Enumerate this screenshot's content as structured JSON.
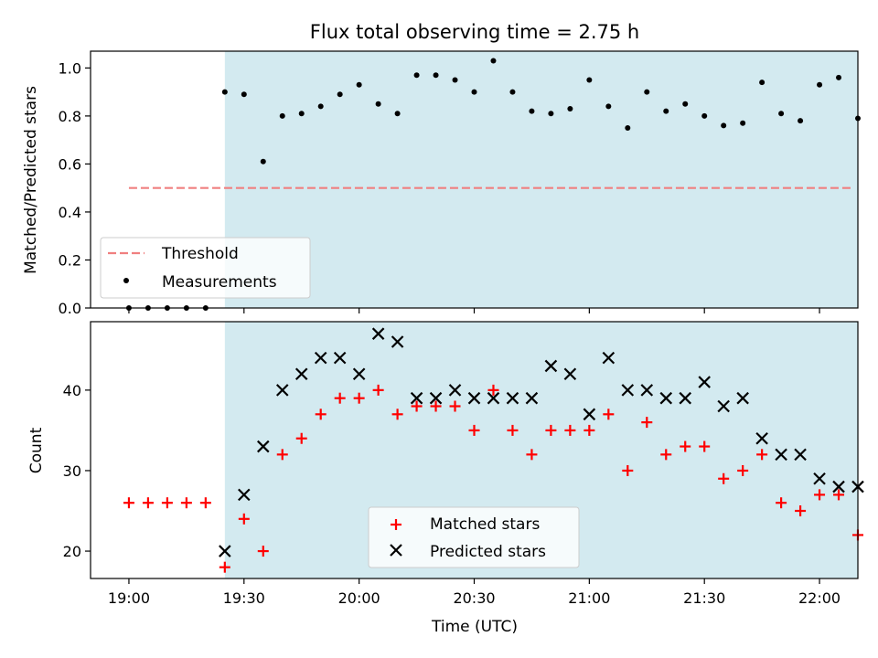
{
  "title": "Flux total observing time = 2.75 h",
  "chart_data": [
    {
      "type": "scatter",
      "ylabel": "Matched/Predicted stars",
      "ylim": [
        0,
        1.07
      ],
      "yticks": [
        0.0,
        0.2,
        0.4,
        0.6,
        0.8,
        1.0
      ],
      "ytick_labels": [
        "0.0",
        "0.2",
        "0.4",
        "0.6",
        "0.8",
        "1.0"
      ],
      "xlim": [
        "18:50",
        "22:10"
      ],
      "shaded_region": {
        "from": "19:25",
        "to": "22:10",
        "color": "#d3eaf0"
      },
      "threshold": {
        "name": "Threshold",
        "value": 0.5,
        "from": "19:00",
        "to": "22:09",
        "color": "#f08080"
      },
      "legend": {
        "position": "lower-left",
        "entries": [
          "Threshold",
          "Measurements"
        ]
      },
      "series": [
        {
          "name": "Measurements",
          "marker": "dot",
          "color": "#000000",
          "x": [
            "19:00",
            "19:05",
            "19:10",
            "19:15",
            "19:20",
            "19:25",
            "19:30",
            "19:35",
            "19:40",
            "19:45",
            "19:50",
            "19:55",
            "20:00",
            "20:05",
            "20:10",
            "20:15",
            "20:20",
            "20:25",
            "20:30",
            "20:35",
            "20:40",
            "20:45",
            "20:50",
            "20:55",
            "21:00",
            "21:05",
            "21:10",
            "21:15",
            "21:20",
            "21:25",
            "21:30",
            "21:35",
            "21:40",
            "21:45",
            "21:50",
            "21:55",
            "22:00",
            "22:05",
            "22:10"
          ],
          "y": [
            0.0,
            0.0,
            0.0,
            0.0,
            0.0,
            0.9,
            0.89,
            0.61,
            0.8,
            0.81,
            0.84,
            0.89,
            0.93,
            0.85,
            0.81,
            0.97,
            0.97,
            0.95,
            0.9,
            1.03,
            0.9,
            0.82,
            0.81,
            0.83,
            0.95,
            0.84,
            0.75,
            0.9,
            0.82,
            0.85,
            0.8,
            0.76,
            0.77,
            0.94,
            0.81,
            0.78,
            0.93,
            0.96,
            0.79
          ]
        }
      ]
    },
    {
      "type": "scatter",
      "ylabel": "Count",
      "xlabel": "Time (UTC)",
      "ylim": [
        16.6,
        48.5
      ],
      "yticks": [
        20,
        30,
        40
      ],
      "ytick_labels": [
        "20",
        "30",
        "40"
      ],
      "xlim": [
        "18:50",
        "22:10"
      ],
      "xticks": [
        "19:00",
        "19:30",
        "20:00",
        "20:30",
        "21:00",
        "21:30",
        "22:00"
      ],
      "xtick_labels": [
        "19:00",
        "19:30",
        "20:00",
        "20:30",
        "21:00",
        "21:30",
        "22:00"
      ],
      "shaded_region": {
        "from": "19:25",
        "to": "22:10",
        "color": "#d3eaf0"
      },
      "legend": {
        "position": "lower-center",
        "entries": [
          "Matched stars",
          "Predicted stars"
        ]
      },
      "series": [
        {
          "name": "Matched stars",
          "marker": "plus",
          "color": "#ff0000",
          "x": [
            "19:00",
            "19:05",
            "19:10",
            "19:15",
            "19:20",
            "19:25",
            "19:30",
            "19:35",
            "19:40",
            "19:45",
            "19:50",
            "19:55",
            "20:00",
            "20:05",
            "20:10",
            "20:15",
            "20:20",
            "20:25",
            "20:30",
            "20:35",
            "20:40",
            "20:45",
            "20:50",
            "20:55",
            "21:00",
            "21:05",
            "21:10",
            "21:15",
            "21:20",
            "21:25",
            "21:30",
            "21:35",
            "21:40",
            "21:45",
            "21:50",
            "21:55",
            "22:00",
            "22:05",
            "22:10"
          ],
          "y": [
            26,
            26,
            26,
            26,
            26,
            18,
            24,
            20,
            32,
            34,
            37,
            39,
            39,
            40,
            37,
            38,
            38,
            38,
            35,
            40,
            35,
            32,
            35,
            35,
            35,
            37,
            30,
            36,
            32,
            33,
            33,
            29,
            30,
            32,
            26,
            25,
            27,
            27,
            22
          ]
        },
        {
          "name": "Predicted stars",
          "marker": "x",
          "color": "#000000",
          "x": [
            "19:25",
            "19:30",
            "19:35",
            "19:40",
            "19:45",
            "19:50",
            "19:55",
            "20:00",
            "20:05",
            "20:10",
            "20:15",
            "20:20",
            "20:25",
            "20:30",
            "20:35",
            "20:40",
            "20:45",
            "20:50",
            "20:55",
            "21:00",
            "21:05",
            "21:10",
            "21:15",
            "21:20",
            "21:25",
            "21:30",
            "21:35",
            "21:40",
            "21:45",
            "21:50",
            "21:55",
            "22:00",
            "22:05",
            "22:10"
          ],
          "y": [
            20,
            27,
            33,
            40,
            42,
            44,
            44,
            42,
            47,
            46,
            39,
            39,
            40,
            39,
            39,
            39,
            39,
            43,
            42,
            37,
            44,
            40,
            40,
            39,
            39,
            41,
            38,
            39,
            34,
            32,
            32,
            29,
            28,
            28
          ]
        }
      ]
    }
  ]
}
